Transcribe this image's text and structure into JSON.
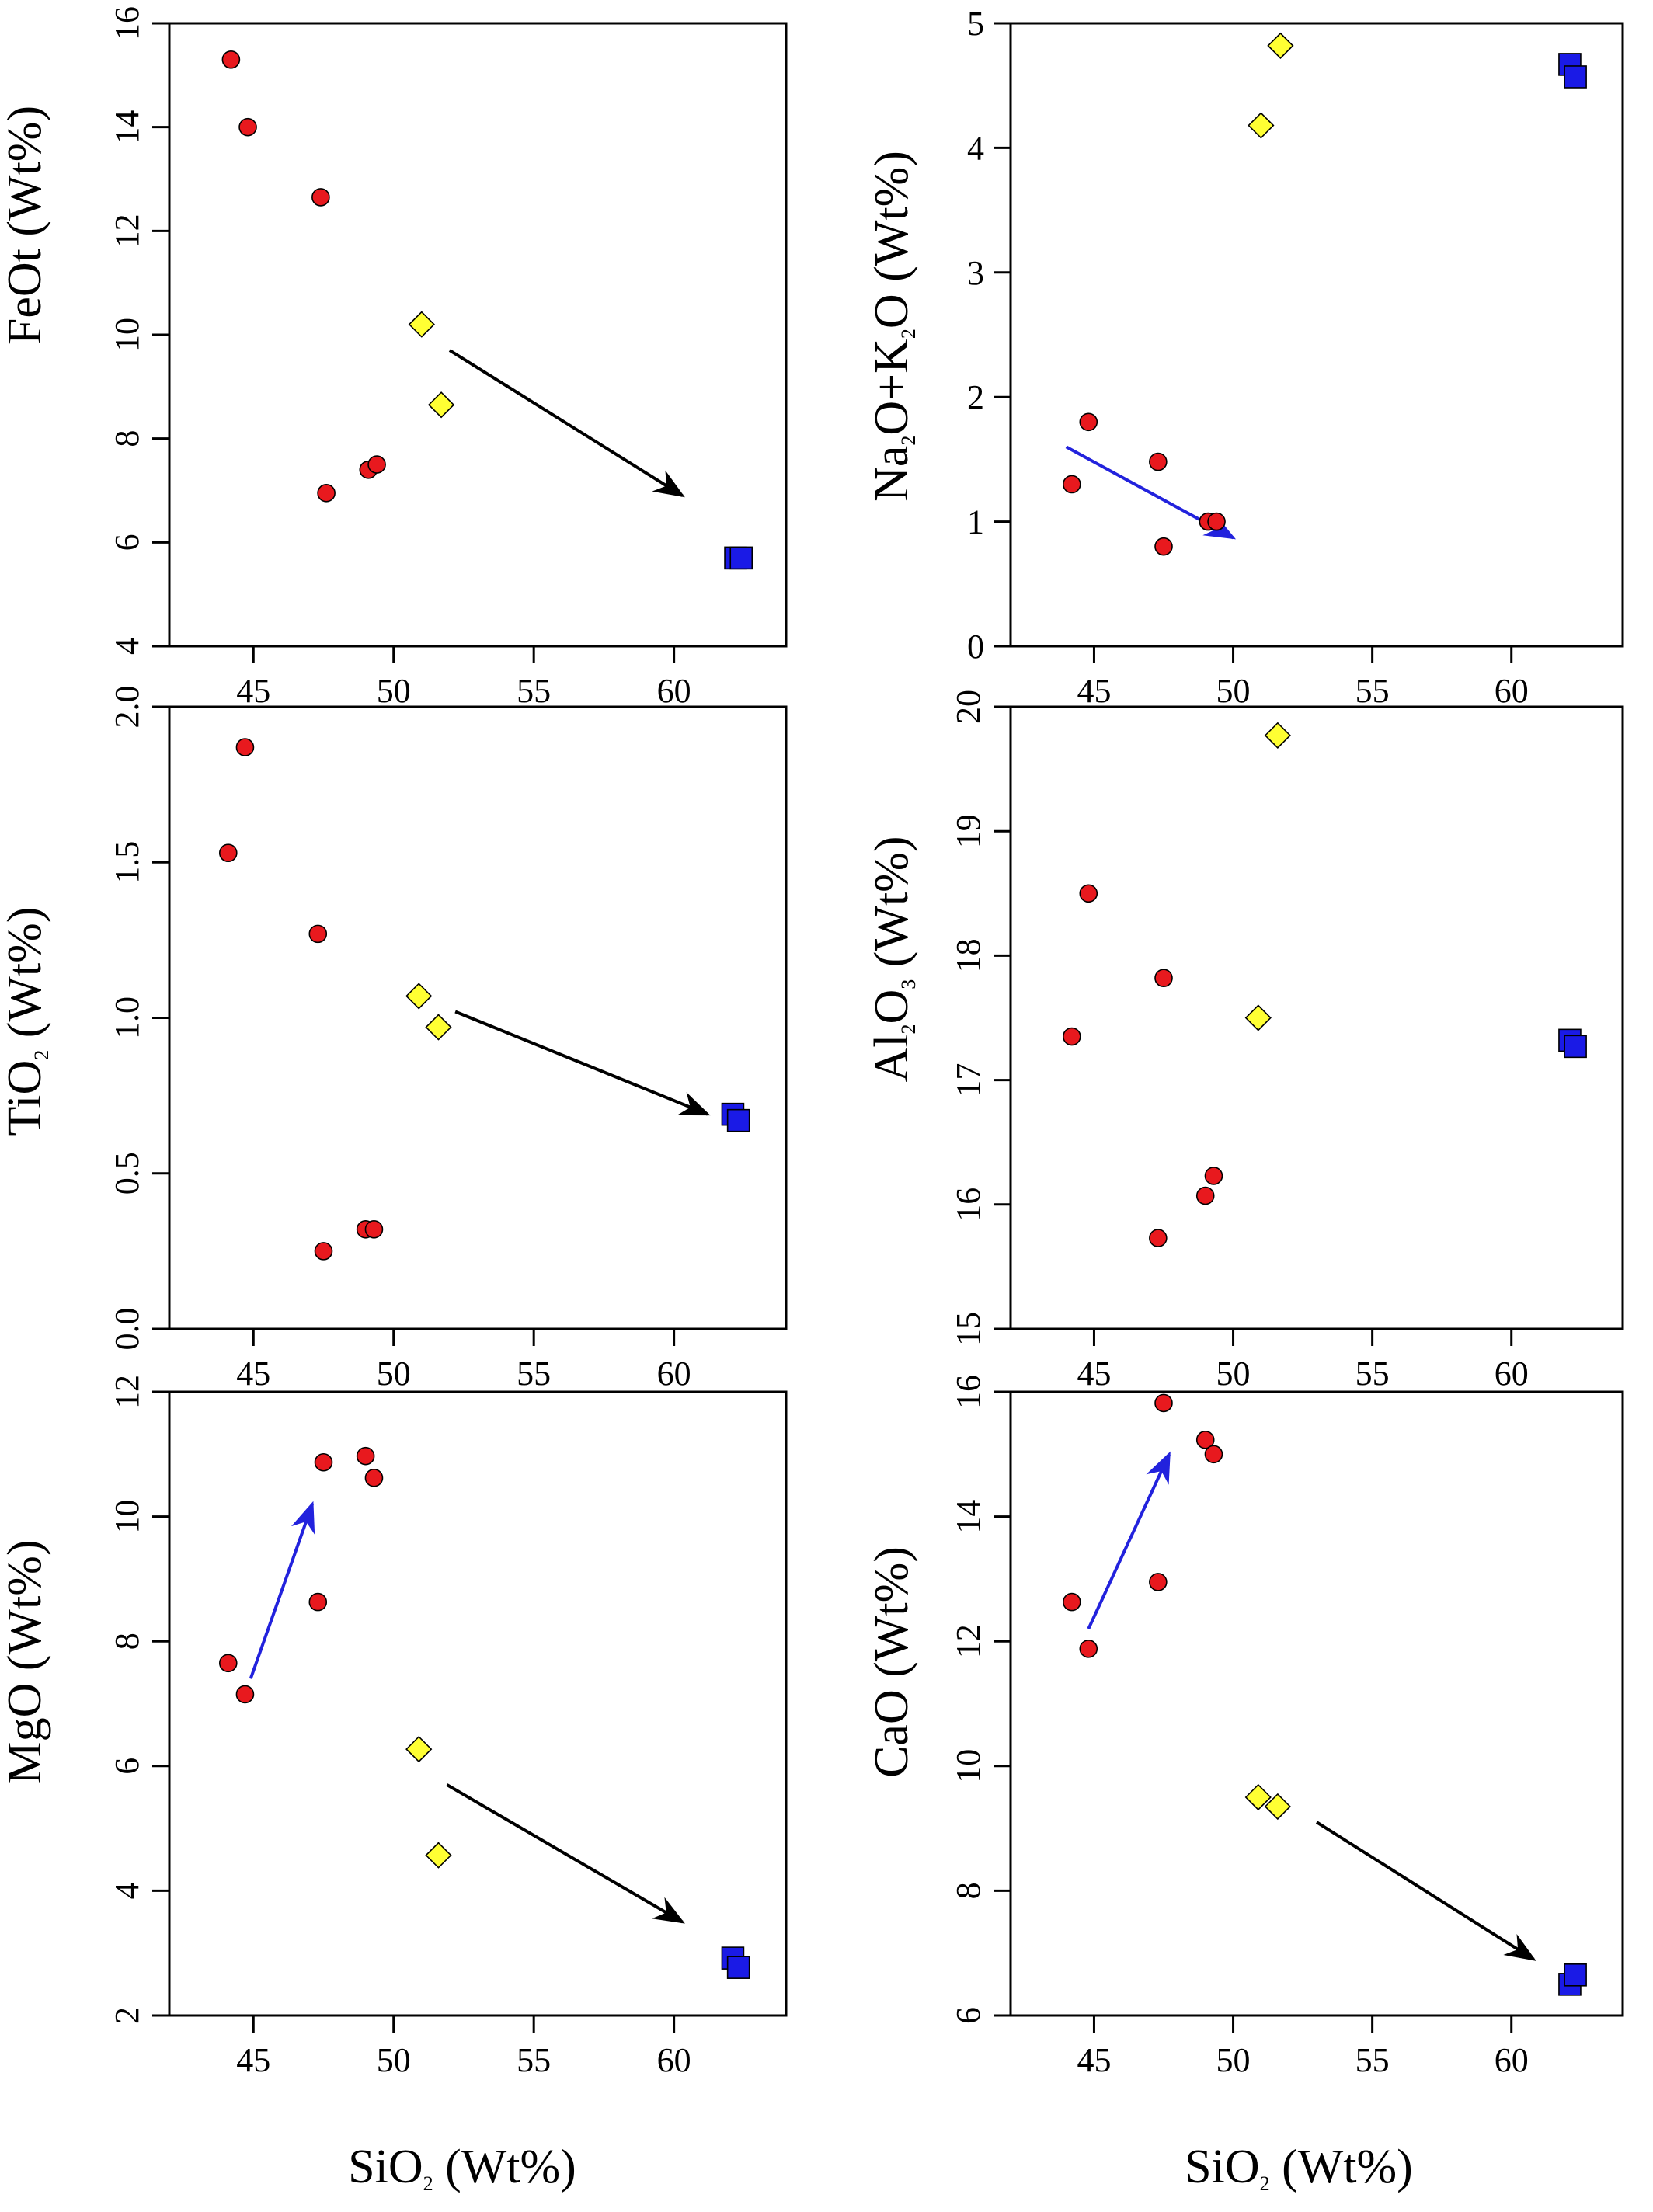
{
  "marker_colors": {
    "red": "#e8191e",
    "yellow": "#ffff33",
    "blue": "#1a1ae6"
  },
  "arrow_colors": {
    "black": "#000000",
    "blue": "#2222dd"
  },
  "chart_data": [
    {
      "type": "scatter",
      "panel": "top-left",
      "ylabel": "FeOt (Wt%)",
      "xlim": [
        42,
        64
      ],
      "ylim": [
        4,
        16
      ],
      "xticks": [
        45,
        50,
        55,
        60
      ],
      "yticks": [
        4,
        6,
        8,
        10,
        12,
        14,
        16
      ],
      "yticks_rotated": true,
      "series": [
        {
          "marker": "circle",
          "color": "red",
          "x": [
            44.2,
            44.8,
            47.4,
            47.6,
            49.1,
            49.4
          ],
          "y": [
            15.3,
            14.0,
            12.65,
            6.95,
            7.4,
            7.5
          ]
        },
        {
          "marker": "diamond",
          "color": "yellow",
          "x": [
            51.0,
            51.7
          ],
          "y": [
            10.2,
            8.65
          ]
        },
        {
          "marker": "square",
          "color": "blue",
          "x": [
            62.2,
            62.4
          ],
          "y": [
            5.7,
            5.7
          ]
        }
      ],
      "arrows": [
        {
          "color": "black",
          "from": [
            52.0,
            9.7
          ],
          "to": [
            60.3,
            6.9
          ]
        }
      ]
    },
    {
      "type": "scatter",
      "panel": "top-right",
      "ylabel": "Na2O+K2O (Wt%)",
      "xlim": [
        42,
        64
      ],
      "ylim": [
        0,
        5
      ],
      "xticks": [
        45,
        50,
        55,
        60
      ],
      "yticks": [
        0,
        1,
        2,
        3,
        4,
        5
      ],
      "yticks_rotated": false,
      "series": [
        {
          "marker": "circle",
          "color": "red",
          "x": [
            44.2,
            44.8,
            47.3,
            47.5,
            49.1,
            49.4
          ],
          "y": [
            1.3,
            1.8,
            1.48,
            0.8,
            1.0,
            1.0
          ]
        },
        {
          "marker": "diamond",
          "color": "yellow",
          "x": [
            51.0,
            51.7
          ],
          "y": [
            4.18,
            4.82
          ]
        },
        {
          "marker": "square",
          "color": "blue",
          "x": [
            62.1,
            62.3
          ],
          "y": [
            4.67,
            4.57
          ]
        }
      ],
      "arrows": [
        {
          "color": "blue",
          "from": [
            44.0,
            1.6
          ],
          "to": [
            50.0,
            0.87
          ]
        }
      ]
    },
    {
      "type": "scatter",
      "panel": "middle-left",
      "ylabel": "TiO2 (Wt%)",
      "xlim": [
        42,
        64
      ],
      "ylim": [
        0.0,
        2.0
      ],
      "xticks": [
        45,
        50,
        55,
        60
      ],
      "yticks": [
        0.0,
        0.5,
        1.0,
        1.5,
        2.0
      ],
      "ytick_labels": [
        "0.0",
        "0.5",
        "1.0",
        "1.5",
        "2.0"
      ],
      "yticks_rotated": true,
      "series": [
        {
          "marker": "circle",
          "color": "red",
          "x": [
            44.1,
            44.7,
            47.3,
            47.5,
            49.0,
            49.3
          ],
          "y": [
            1.53,
            1.87,
            1.27,
            0.25,
            0.32,
            0.32
          ]
        },
        {
          "marker": "diamond",
          "color": "yellow",
          "x": [
            50.9,
            51.6
          ],
          "y": [
            1.07,
            0.97
          ]
        },
        {
          "marker": "square",
          "color": "blue",
          "x": [
            62.1,
            62.3
          ],
          "y": [
            0.69,
            0.67
          ]
        }
      ],
      "arrows": [
        {
          "color": "black",
          "from": [
            52.2,
            1.02
          ],
          "to": [
            61.2,
            0.69
          ]
        }
      ]
    },
    {
      "type": "scatter",
      "panel": "middle-right",
      "ylabel": "Al2O3 (Wt%)",
      "xlim": [
        42,
        64
      ],
      "ylim": [
        15,
        20
      ],
      "xticks": [
        45,
        50,
        55,
        60
      ],
      "yticks": [
        15,
        16,
        17,
        18,
        19,
        20
      ],
      "yticks_rotated": true,
      "series": [
        {
          "marker": "circle",
          "color": "red",
          "x": [
            44.2,
            44.8,
            47.3,
            47.5,
            49.0,
            49.3
          ],
          "y": [
            17.35,
            18.5,
            15.73,
            17.82,
            16.07,
            16.23
          ]
        },
        {
          "marker": "diamond",
          "color": "yellow",
          "x": [
            50.9,
            51.6
          ],
          "y": [
            17.5,
            19.77
          ]
        },
        {
          "marker": "square",
          "color": "blue",
          "x": [
            62.1,
            62.3
          ],
          "y": [
            17.32,
            17.27
          ]
        }
      ],
      "arrows": []
    },
    {
      "type": "scatter",
      "panel": "bottom-left",
      "ylabel": "MgO (Wt%)",
      "xlabel": "SiO2 (Wt%)",
      "xlim": [
        42,
        64
      ],
      "ylim": [
        2,
        12
      ],
      "xticks": [
        45,
        50,
        55,
        60
      ],
      "yticks": [
        2,
        4,
        6,
        8,
        10,
        12
      ],
      "yticks_rotated": true,
      "series": [
        {
          "marker": "circle",
          "color": "red",
          "x": [
            44.1,
            44.7,
            47.3,
            47.5,
            49.0,
            49.3
          ],
          "y": [
            7.65,
            7.15,
            8.63,
            10.87,
            10.97,
            10.62
          ]
        },
        {
          "marker": "diamond",
          "color": "yellow",
          "x": [
            50.9,
            51.6
          ],
          "y": [
            6.27,
            4.57
          ]
        },
        {
          "marker": "square",
          "color": "blue",
          "x": [
            62.1,
            62.3
          ],
          "y": [
            2.92,
            2.77
          ]
        }
      ],
      "arrows": [
        {
          "color": "blue",
          "from": [
            44.9,
            7.4
          ],
          "to": [
            47.1,
            10.2
          ]
        },
        {
          "color": "black",
          "from": [
            51.9,
            5.7
          ],
          "to": [
            60.3,
            3.5
          ]
        }
      ]
    },
    {
      "type": "scatter",
      "panel": "bottom-right",
      "ylabel": "CaO (Wt%)",
      "xlabel": "SiO2 (Wt%)",
      "xlim": [
        42,
        64
      ],
      "ylim": [
        6,
        16
      ],
      "xticks": [
        45,
        50,
        55,
        60
      ],
      "yticks": [
        6,
        8,
        10,
        12,
        14,
        16
      ],
      "yticks_rotated": true,
      "series": [
        {
          "marker": "circle",
          "color": "red",
          "x": [
            44.2,
            44.8,
            47.3,
            47.5,
            49.0,
            49.3
          ],
          "y": [
            12.63,
            11.88,
            12.95,
            15.82,
            15.23,
            15.0
          ]
        },
        {
          "marker": "diamond",
          "color": "yellow",
          "x": [
            50.9,
            51.6
          ],
          "y": [
            9.5,
            9.35
          ]
        },
        {
          "marker": "square",
          "color": "blue",
          "x": [
            62.1,
            62.3
          ],
          "y": [
            6.5,
            6.65
          ]
        }
      ],
      "arrows": [
        {
          "color": "blue",
          "from": [
            44.8,
            12.2
          ],
          "to": [
            47.7,
            15.0
          ]
        },
        {
          "color": "black",
          "from": [
            53.0,
            9.1
          ],
          "to": [
            60.8,
            6.9
          ]
        }
      ]
    }
  ]
}
